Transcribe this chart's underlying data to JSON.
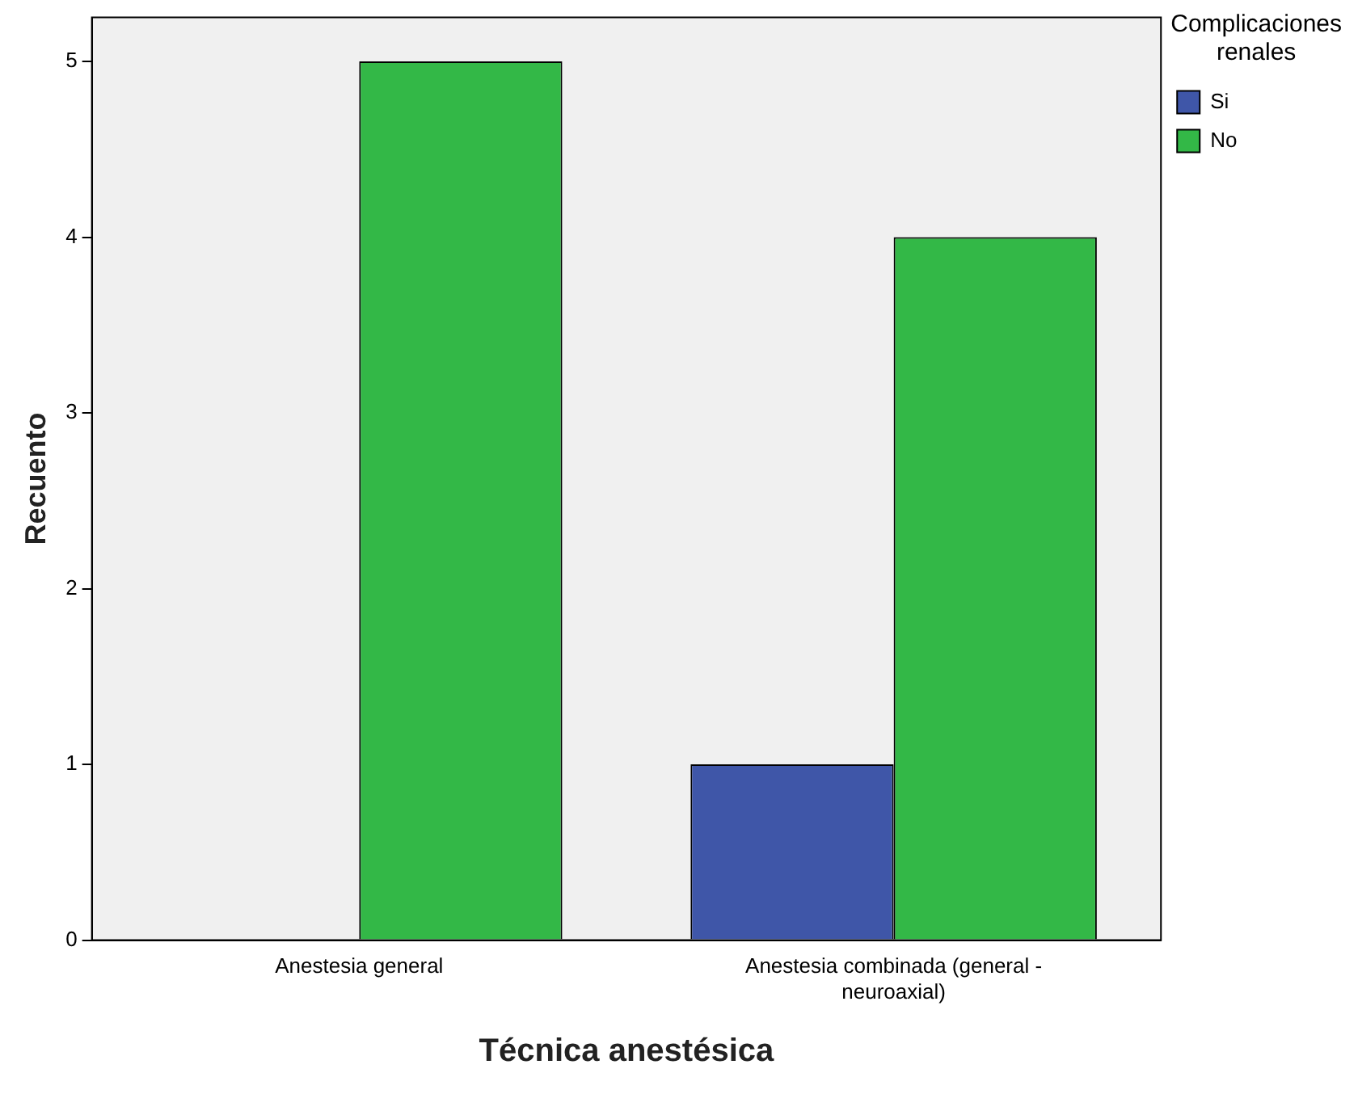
{
  "chart_data": {
    "type": "bar",
    "xlabel": "Técnica anestésica",
    "ylabel": "Recuento",
    "legend_title": "Complicaciones renales",
    "categories": [
      "Anestesia general",
      "Anestesia combinada (general - neuroaxial)"
    ],
    "series": [
      {
        "name": "Si",
        "color": "#3f56a8",
        "values": [
          0,
          1
        ]
      },
      {
        "name": "No",
        "color": "#33b847",
        "values": [
          5,
          4
        ]
      }
    ],
    "ylim": [
      0,
      5.25
    ],
    "yticks": [
      0,
      1,
      2,
      3,
      4,
      5
    ],
    "grid": false,
    "legend": "top right"
  }
}
